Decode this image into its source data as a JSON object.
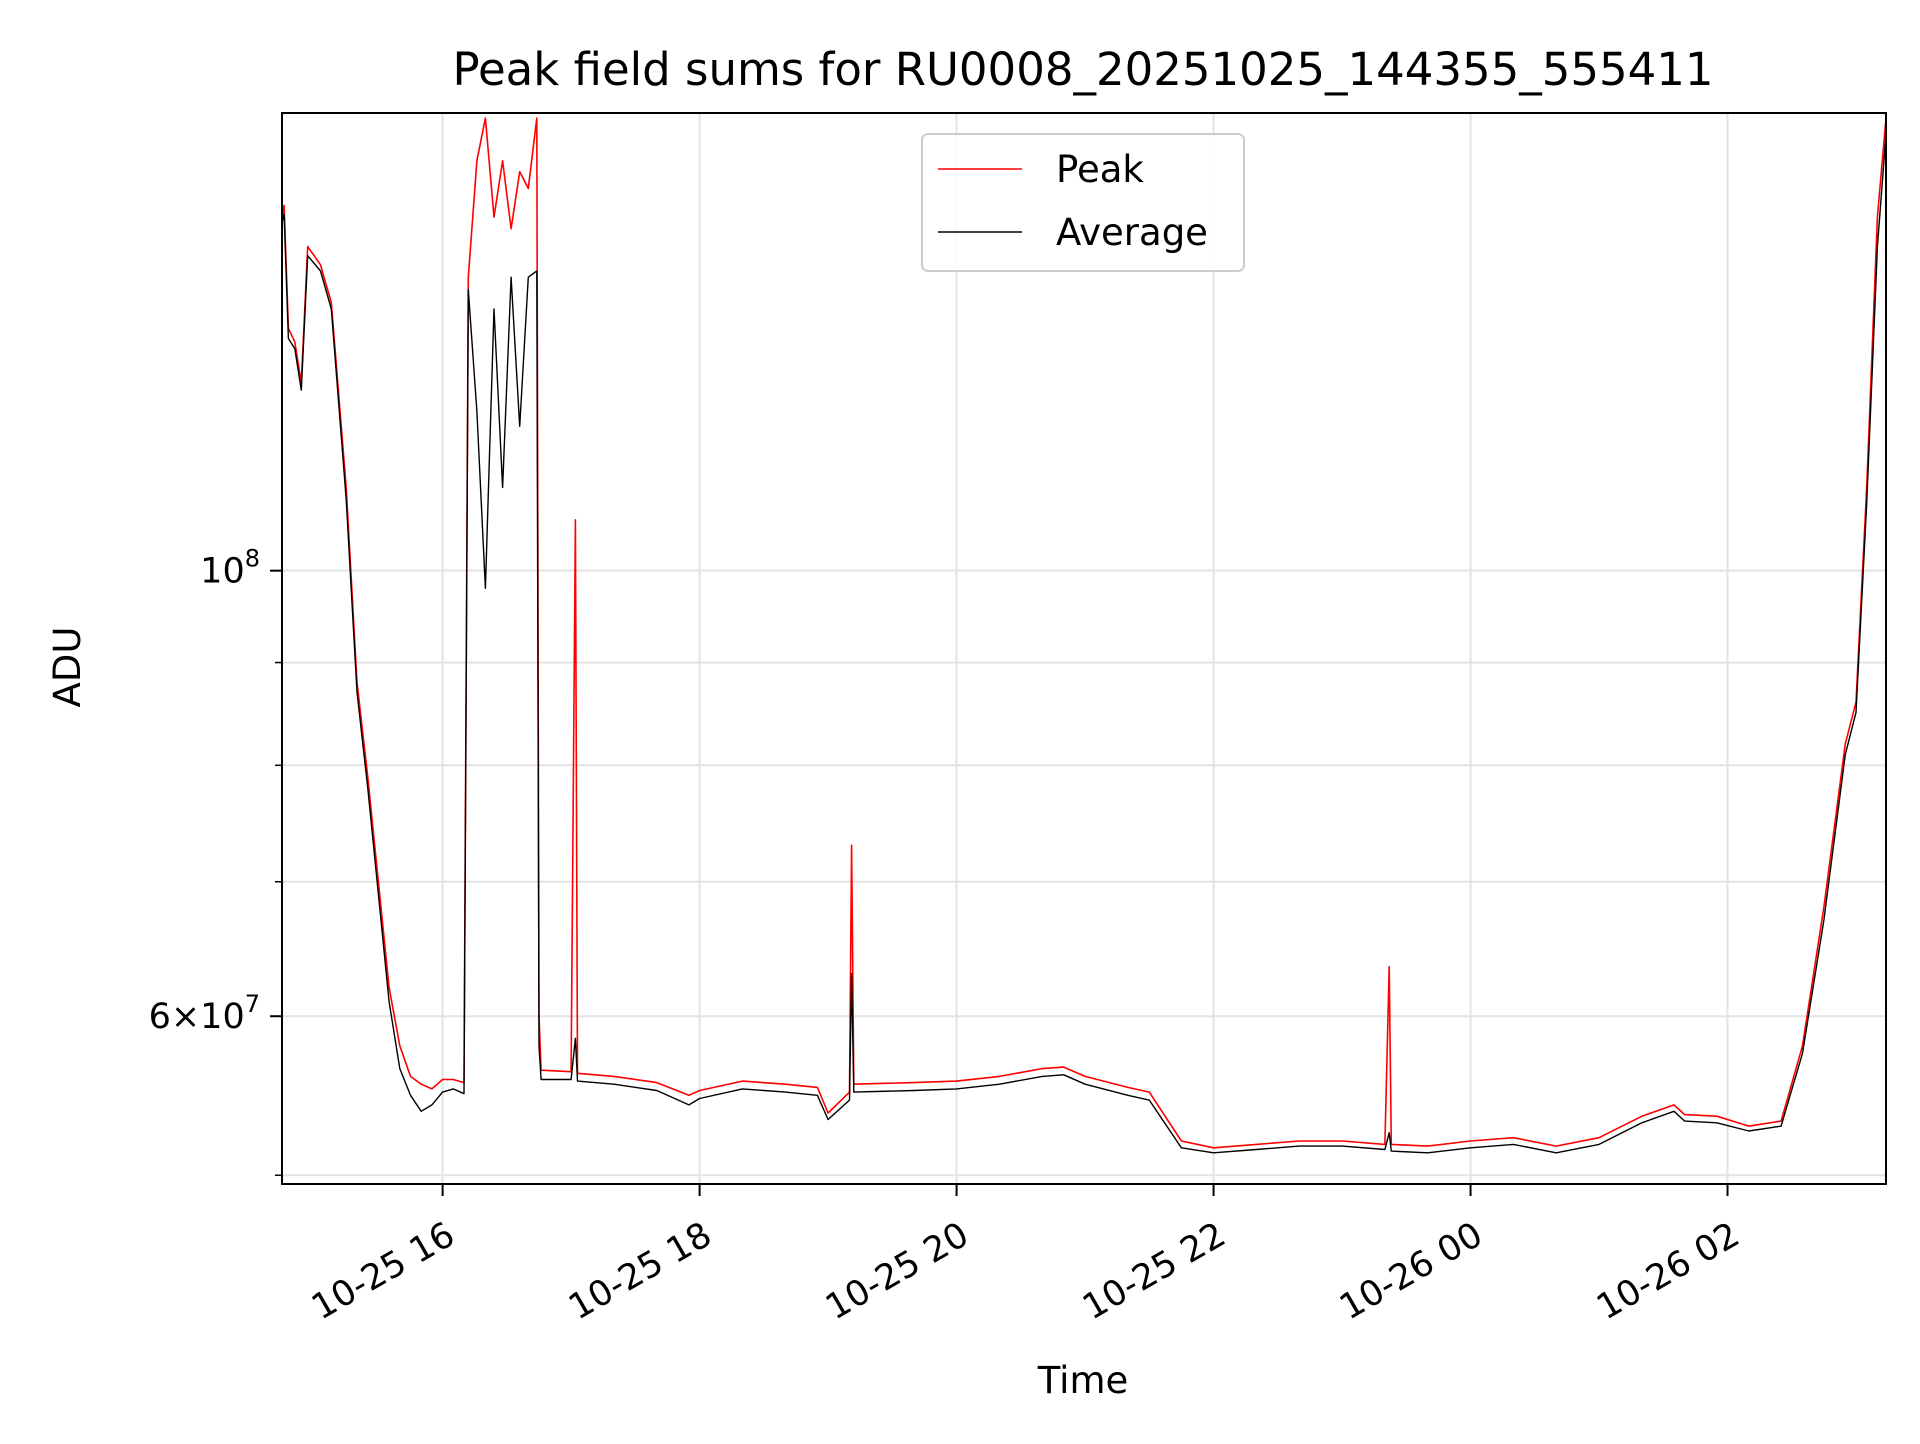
{
  "chart_data": {
    "type": "line",
    "title": "Peak field sums for RU0008_20251025_144355_555411",
    "xlabel": "Time",
    "ylabel": "ADU",
    "y_scale": "log",
    "ylim": [
      49500000,
      169000000
    ],
    "xlim": [
      "2025-10-25 14:45",
      "2025-10-26 03:14"
    ],
    "x_ticks": [
      {
        "value": "2025-10-25 16:00",
        "label": "10-25 16"
      },
      {
        "value": "2025-10-25 18:00",
        "label": "10-25 18"
      },
      {
        "value": "2025-10-25 20:00",
        "label": "10-25 20"
      },
      {
        "value": "2025-10-25 22:00",
        "label": "10-25 22"
      },
      {
        "value": "2025-10-26 00:00",
        "label": "10-26 00"
      },
      {
        "value": "2025-10-26 02:00",
        "label": "10-26 02"
      }
    ],
    "y_major_ticks": [
      {
        "value": 100000000,
        "base": "10",
        "exponent": "8"
      },
      {
        "value": 60000000,
        "mantissa": "6",
        "base": "10",
        "exponent": "7"
      }
    ],
    "y_minor_gridlines": [
      50000000,
      70000000,
      80000000,
      90000000
    ],
    "grid": true,
    "legend": {
      "position": "top-center"
    },
    "series": [
      {
        "name": "Peak",
        "color": "#ff0000",
        "points": [
          [
            "2025-10-25 14:45",
            150000000
          ],
          [
            "2025-10-25 14:46",
            152000000
          ],
          [
            "2025-10-25 14:48",
            132000000
          ],
          [
            "2025-10-25 14:51",
            130000000
          ],
          [
            "2025-10-25 14:54",
            124000000
          ],
          [
            "2025-10-25 14:57",
            145000000
          ],
          [
            "2025-10-25 15:03",
            142000000
          ],
          [
            "2025-10-25 15:08",
            136000000
          ],
          [
            "2025-10-25 15:15",
            110000000
          ],
          [
            "2025-10-25 15:20",
            88000000
          ],
          [
            "2025-10-25 15:25",
            79000000
          ],
          [
            "2025-10-25 15:30",
            70000000
          ],
          [
            "2025-10-25 15:35",
            62000000
          ],
          [
            "2025-10-25 15:40",
            58000000
          ],
          [
            "2025-10-25 15:45",
            56000000
          ],
          [
            "2025-10-25 15:50",
            55500000
          ],
          [
            "2025-10-25 15:55",
            55200000
          ],
          [
            "2025-10-25 16:00",
            55800000
          ],
          [
            "2025-10-25 16:05",
            55800000
          ],
          [
            "2025-10-25 16:10",
            55600000
          ],
          [
            "2025-10-25 16:12",
            140000000
          ],
          [
            "2025-10-25 16:16",
            160000000
          ],
          [
            "2025-10-25 16:20",
            168000000
          ],
          [
            "2025-10-25 16:24",
            150000000
          ],
          [
            "2025-10-25 16:28",
            160000000
          ],
          [
            "2025-10-25 16:32",
            148000000
          ],
          [
            "2025-10-25 16:36",
            158000000
          ],
          [
            "2025-10-25 16:40",
            155000000
          ],
          [
            "2025-10-25 16:44",
            168000000
          ],
          [
            "2025-10-25 16:45",
            60000000
          ],
          [
            "2025-10-25 16:46",
            56400000
          ],
          [
            "2025-10-25 17:00",
            56300000
          ],
          [
            "2025-10-25 17:02",
            106000000
          ],
          [
            "2025-10-25 17:03",
            56200000
          ],
          [
            "2025-10-25 17:20",
            56000000
          ],
          [
            "2025-10-25 17:40",
            55600000
          ],
          [
            "2025-10-25 17:55",
            54800000
          ],
          [
            "2025-10-25 18:00",
            55100000
          ],
          [
            "2025-10-25 18:20",
            55700000
          ],
          [
            "2025-10-25 18:40",
            55500000
          ],
          [
            "2025-10-25 18:55",
            55300000
          ],
          [
            "2025-10-25 19:00",
            53700000
          ],
          [
            "2025-10-25 19:10",
            55000000
          ],
          [
            "2025-10-25 19:11",
            73000000
          ],
          [
            "2025-10-25 19:12",
            55500000
          ],
          [
            "2025-10-25 19:40",
            55600000
          ],
          [
            "2025-10-25 20:00",
            55700000
          ],
          [
            "2025-10-25 20:20",
            56000000
          ],
          [
            "2025-10-25 20:40",
            56500000
          ],
          [
            "2025-10-25 20:50",
            56600000
          ],
          [
            "2025-10-25 21:00",
            56000000
          ],
          [
            "2025-10-25 21:20",
            55300000
          ],
          [
            "2025-10-25 21:30",
            55000000
          ],
          [
            "2025-10-25 21:45",
            52000000
          ],
          [
            "2025-10-25 22:00",
            51600000
          ],
          [
            "2025-10-25 22:20",
            51800000
          ],
          [
            "2025-10-25 22:40",
            52000000
          ],
          [
            "2025-10-25 23:00",
            52000000
          ],
          [
            "2025-10-25 23:20",
            51800000
          ],
          [
            "2025-10-25 23:22",
            63500000
          ],
          [
            "2025-10-25 23:23",
            51800000
          ],
          [
            "2025-10-25 23:40",
            51700000
          ],
          [
            "2025-10-26 00:00",
            52000000
          ],
          [
            "2025-10-26 00:20",
            52200000
          ],
          [
            "2025-10-26 00:40",
            51700000
          ],
          [
            "2025-10-26 01:00",
            52200000
          ],
          [
            "2025-10-26 01:20",
            53500000
          ],
          [
            "2025-10-26 01:35",
            54200000
          ],
          [
            "2025-10-26 01:40",
            53600000
          ],
          [
            "2025-10-26 01:55",
            53500000
          ],
          [
            "2025-10-26 02:10",
            52900000
          ],
          [
            "2025-10-26 02:25",
            53200000
          ],
          [
            "2025-10-26 02:35",
            58000000
          ],
          [
            "2025-10-26 02:45",
            68000000
          ],
          [
            "2025-10-26 02:55",
            82000000
          ],
          [
            "2025-10-26 03:00",
            86000000
          ],
          [
            "2025-10-26 03:05",
            110000000
          ],
          [
            "2025-10-26 03:10",
            150000000
          ],
          [
            "2025-10-26 03:14",
            168000000
          ]
        ]
      },
      {
        "name": "Average",
        "color": "#000000",
        "points": [
          [
            "2025-10-25 14:45",
            149000000
          ],
          [
            "2025-10-25 14:46",
            150500000
          ],
          [
            "2025-10-25 14:48",
            130500000
          ],
          [
            "2025-10-25 14:51",
            129000000
          ],
          [
            "2025-10-25 14:54",
            123000000
          ],
          [
            "2025-10-25 14:57",
            143500000
          ],
          [
            "2025-10-25 15:03",
            141000000
          ],
          [
            "2025-10-25 15:08",
            135000000
          ],
          [
            "2025-10-25 15:15",
            108500000
          ],
          [
            "2025-10-25 15:20",
            87000000
          ],
          [
            "2025-10-25 15:25",
            78000000
          ],
          [
            "2025-10-25 15:30",
            69000000
          ],
          [
            "2025-10-25 15:35",
            61000000
          ],
          [
            "2025-10-25 15:40",
            56500000
          ],
          [
            "2025-10-25 15:45",
            54800000
          ],
          [
            "2025-10-25 15:50",
            53800000
          ],
          [
            "2025-10-25 15:55",
            54200000
          ],
          [
            "2025-10-25 16:00",
            55000000
          ],
          [
            "2025-10-25 16:05",
            55200000
          ],
          [
            "2025-10-25 16:10",
            54900000
          ],
          [
            "2025-10-25 16:12",
            138000000
          ],
          [
            "2025-10-25 16:16",
            120000000
          ],
          [
            "2025-10-25 16:20",
            98000000
          ],
          [
            "2025-10-25 16:24",
            135000000
          ],
          [
            "2025-10-25 16:28",
            110000000
          ],
          [
            "2025-10-25 16:32",
            140000000
          ],
          [
            "2025-10-25 16:36",
            118000000
          ],
          [
            "2025-10-25 16:40",
            140000000
          ],
          [
            "2025-10-25 16:44",
            141000000
          ],
          [
            "2025-10-25 16:45",
            58000000
          ],
          [
            "2025-10-25 16:46",
            55800000
          ],
          [
            "2025-10-25 17:00",
            55800000
          ],
          [
            "2025-10-25 17:02",
            58500000
          ],
          [
            "2025-10-25 17:03",
            55700000
          ],
          [
            "2025-10-25 17:20",
            55500000
          ],
          [
            "2025-10-25 17:40",
            55100000
          ],
          [
            "2025-10-25 17:55",
            54200000
          ],
          [
            "2025-10-25 18:00",
            54600000
          ],
          [
            "2025-10-25 18:20",
            55200000
          ],
          [
            "2025-10-25 18:40",
            55000000
          ],
          [
            "2025-10-25 18:55",
            54800000
          ],
          [
            "2025-10-25 19:00",
            53300000
          ],
          [
            "2025-10-25 19:10",
            54500000
          ],
          [
            "2025-10-25 19:11",
            63000000
          ],
          [
            "2025-10-25 19:12",
            55000000
          ],
          [
            "2025-10-25 19:40",
            55100000
          ],
          [
            "2025-10-25 20:00",
            55200000
          ],
          [
            "2025-10-25 20:20",
            55500000
          ],
          [
            "2025-10-25 20:40",
            56000000
          ],
          [
            "2025-10-25 20:50",
            56100000
          ],
          [
            "2025-10-25 21:00",
            55500000
          ],
          [
            "2025-10-25 21:20",
            54800000
          ],
          [
            "2025-10-25 21:30",
            54500000
          ],
          [
            "2025-10-25 21:45",
            51600000
          ],
          [
            "2025-10-25 22:00",
            51300000
          ],
          [
            "2025-10-25 22:20",
            51500000
          ],
          [
            "2025-10-25 22:40",
            51700000
          ],
          [
            "2025-10-25 23:00",
            51700000
          ],
          [
            "2025-10-25 23:20",
            51500000
          ],
          [
            "2025-10-25 23:22",
            52500000
          ],
          [
            "2025-10-25 23:23",
            51400000
          ],
          [
            "2025-10-25 23:40",
            51300000
          ],
          [
            "2025-10-26 00:00",
            51600000
          ],
          [
            "2025-10-26 00:20",
            51800000
          ],
          [
            "2025-10-26 00:40",
            51300000
          ],
          [
            "2025-10-26 01:00",
            51800000
          ],
          [
            "2025-10-26 01:20",
            53100000
          ],
          [
            "2025-10-26 01:35",
            53800000
          ],
          [
            "2025-10-26 01:40",
            53200000
          ],
          [
            "2025-10-26 01:55",
            53100000
          ],
          [
            "2025-10-26 02:10",
            52600000
          ],
          [
            "2025-10-26 02:25",
            52900000
          ],
          [
            "2025-10-26 02:35",
            57500000
          ],
          [
            "2025-10-26 02:45",
            67000000
          ],
          [
            "2025-10-26 02:55",
            81000000
          ],
          [
            "2025-10-26 03:00",
            85000000
          ],
          [
            "2025-10-26 03:05",
            108000000
          ],
          [
            "2025-10-26 03:10",
            145000000
          ],
          [
            "2025-10-26 03:14",
            165000000
          ]
        ]
      }
    ]
  }
}
